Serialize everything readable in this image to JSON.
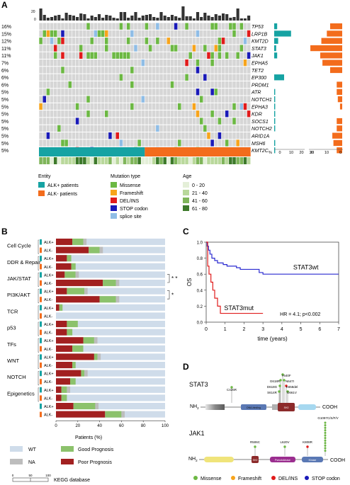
{
  "panel_labels": {
    "a": "A",
    "b": "B",
    "c": "C",
    "d": "D"
  },
  "panel_a": {
    "top_axis": [
      "20",
      "0"
    ],
    "genes": [
      "TP53",
      "LRP1B",
      "KMT2D",
      "STAT3",
      "JAK1",
      "EPHA5",
      "TET2",
      "EP300",
      "PRDM1",
      "ATR",
      "NOTCH1",
      "EPHA3",
      "KDR",
      "SOCS1",
      "NOTCH2",
      "ARID1A",
      "MSH6",
      "KMT2C"
    ],
    "percents": [
      "16%",
      "15%",
      "12%",
      "11%",
      "11%",
      "7%",
      "6%",
      "6%",
      "6%",
      "5%",
      "5%",
      "5%",
      "5%",
      "5%",
      "5%",
      "5%",
      "5%",
      "5%"
    ],
    "alk_pos_bars": [
      3,
      17,
      4,
      2,
      3,
      0,
      0,
      10,
      0,
      1,
      1,
      1,
      1,
      1,
      1,
      0,
      1,
      1
    ],
    "alk_neg_bars": [
      11,
      14,
      19,
      29,
      20,
      18,
      11,
      0,
      5,
      5,
      4,
      2,
      0,
      5,
      5,
      9,
      8,
      5
    ],
    "side_axis_a": [
      "%",
      "0",
      "10",
      "20",
      "30"
    ],
    "side_axis_b": [
      "20",
      "10",
      "0"
    ],
    "legend_entity_title": "Entity",
    "entities": [
      "ALK+ patients",
      "ALK- patients"
    ],
    "legend_mutation_title": "Mutation type",
    "mutation_types": [
      "Missense",
      "Frameshift",
      "DEL/INS",
      "STOP codon",
      "splice site"
    ],
    "legend_age_title": "Age",
    "age_groups": [
      "0 - 20",
      "21 - 40",
      "41 - 60",
      "61 - 80"
    ]
  },
  "panel_b": {
    "categories": [
      "Cell Cycle",
      "DDR & Repair",
      "JAK/STAT",
      "PI3K/AKT",
      "TCR",
      "p53",
      "TFs",
      "WNT",
      "NOTCH",
      "Epigenetics"
    ],
    "rows": [
      {
        "label": "ALK+",
        "poor": 15,
        "good": 10,
        "na": 3
      },
      {
        "label": "ALK-",
        "poor": 30,
        "good": 10,
        "na": 3
      },
      {
        "label": "ALK+",
        "poor": 10,
        "good": 4,
        "na": 0
      },
      {
        "label": "ALK-",
        "poor": 14,
        "good": 4,
        "na": 0
      },
      {
        "label": "ALK+",
        "poor": 8,
        "good": 10,
        "na": 3
      },
      {
        "label": "ALK-",
        "poor": 43,
        "good": 12,
        "na": 3
      },
      {
        "label": "ALK+",
        "poor": 10,
        "good": 16,
        "na": 3
      },
      {
        "label": "ALK-",
        "poor": 40,
        "good": 15,
        "na": 3
      },
      {
        "label": "ALK+",
        "poor": 3,
        "good": 3,
        "na": 0
      },
      {
        "label": "ALK-",
        "poor": 0,
        "good": 0,
        "na": 0
      },
      {
        "label": "ALK+",
        "poor": 10,
        "good": 10,
        "na": 0
      },
      {
        "label": "ALK-",
        "poor": 10,
        "good": 5,
        "na": 0
      },
      {
        "label": "ALK+",
        "poor": 25,
        "good": 10,
        "na": 3
      },
      {
        "label": "ALK-",
        "poor": 15,
        "good": 10,
        "na": 0
      },
      {
        "label": "ALK+",
        "poor": 35,
        "good": 3,
        "na": 3
      },
      {
        "label": "ALK-",
        "poor": 15,
        "good": 3,
        "na": 0
      },
      {
        "label": "ALK+",
        "poor": 23,
        "good": 3,
        "na": 3
      },
      {
        "label": "ALK-",
        "poor": 13,
        "good": 5,
        "na": 0
      },
      {
        "label": "ALK+",
        "poor": 5,
        "good": 5,
        "na": 3
      },
      {
        "label": "ALK-",
        "poor": 5,
        "good": 5,
        "na": 0
      },
      {
        "label": "ALK+",
        "poor": 16,
        "good": 20,
        "na": 3
      },
      {
        "label": "ALK-",
        "poor": 45,
        "good": 15,
        "na": 3
      }
    ],
    "significance": [
      "*",
      "*",
      "*"
    ],
    "x_ticks": [
      "0",
      "20",
      "40",
      "60",
      "80",
      "100"
    ],
    "x_label": "Patients (%)",
    "legend": [
      "WT",
      "Good Prognosis",
      "NA",
      "Poor Prognosis"
    ],
    "scale_ticks": [
      "0",
      "50",
      "100"
    ],
    "scale_label": "KEGG database",
    "colors": {
      "wt": "#cfdcea",
      "good": "#8cc26c",
      "na": "#bdbdbd",
      "poor": "#a22020"
    }
  },
  "panel_c": {
    "chart_data": {
      "type": "line",
      "xlabel": "time (years)",
      "ylabel": "OS",
      "x_ticks": [
        0,
        1,
        2,
        3,
        4,
        5,
        6,
        7
      ],
      "y_ticks": [
        "0.0",
        "0.2",
        "0.4",
        "0.6",
        "0.8",
        "1.0"
      ],
      "xlim": [
        0,
        7
      ],
      "ylim": [
        0,
        1
      ],
      "series": [
        {
          "name": "STAT3wt",
          "color": "#2a2ad0",
          "steps": [
            [
              0,
              1.0
            ],
            [
              0.05,
              0.95
            ],
            [
              0.12,
              0.9
            ],
            [
              0.2,
              0.85
            ],
            [
              0.3,
              0.8
            ],
            [
              0.45,
              0.77
            ],
            [
              0.6,
              0.74
            ],
            [
              0.9,
              0.72
            ],
            [
              1.1,
              0.7
            ],
            [
              1.6,
              0.68
            ],
            [
              1.8,
              0.66
            ],
            [
              2.8,
              0.62
            ],
            [
              3.0,
              0.6
            ],
            [
              7.0,
              0.6
            ]
          ]
        },
        {
          "name": "STAT3mut",
          "color": "#e01c1c",
          "steps": [
            [
              0,
              1.0
            ],
            [
              0.08,
              0.7
            ],
            [
              0.15,
              0.6
            ],
            [
              0.25,
              0.5
            ],
            [
              0.35,
              0.4
            ],
            [
              0.45,
              0.3
            ],
            [
              0.6,
              0.2
            ],
            [
              0.75,
              0.11
            ],
            [
              3.0,
              0.11
            ]
          ]
        }
      ],
      "annotation": "HR = 4.1; p<0.002"
    }
  },
  "panel_d": {
    "stat3": {
      "label": "STAT3",
      "nh2": "NH",
      "sub": "2",
      "cooh": "COOH",
      "domains": [
        "DNA-binding",
        "SH2"
      ],
      "mutations": [
        "C426R",
        "Y640F",
        "G618R",
        "N647I",
        "D618G",
        "K658del",
        "S614R",
        "D661V"
      ]
    },
    "jak1": {
      "label": "JAK1",
      "nh2": "NH",
      "sub": "2",
      "cooh": "COOH",
      "domains": [
        "SH2",
        "Pseudokinase",
        "Kinase"
      ],
      "mutations": [
        "R506C",
        "L620V",
        "K808R",
        "G1097C/S/F/V"
      ]
    },
    "legend": [
      "Missense",
      "Frameshift",
      "DEL/INS",
      "STOP codon"
    ]
  }
}
